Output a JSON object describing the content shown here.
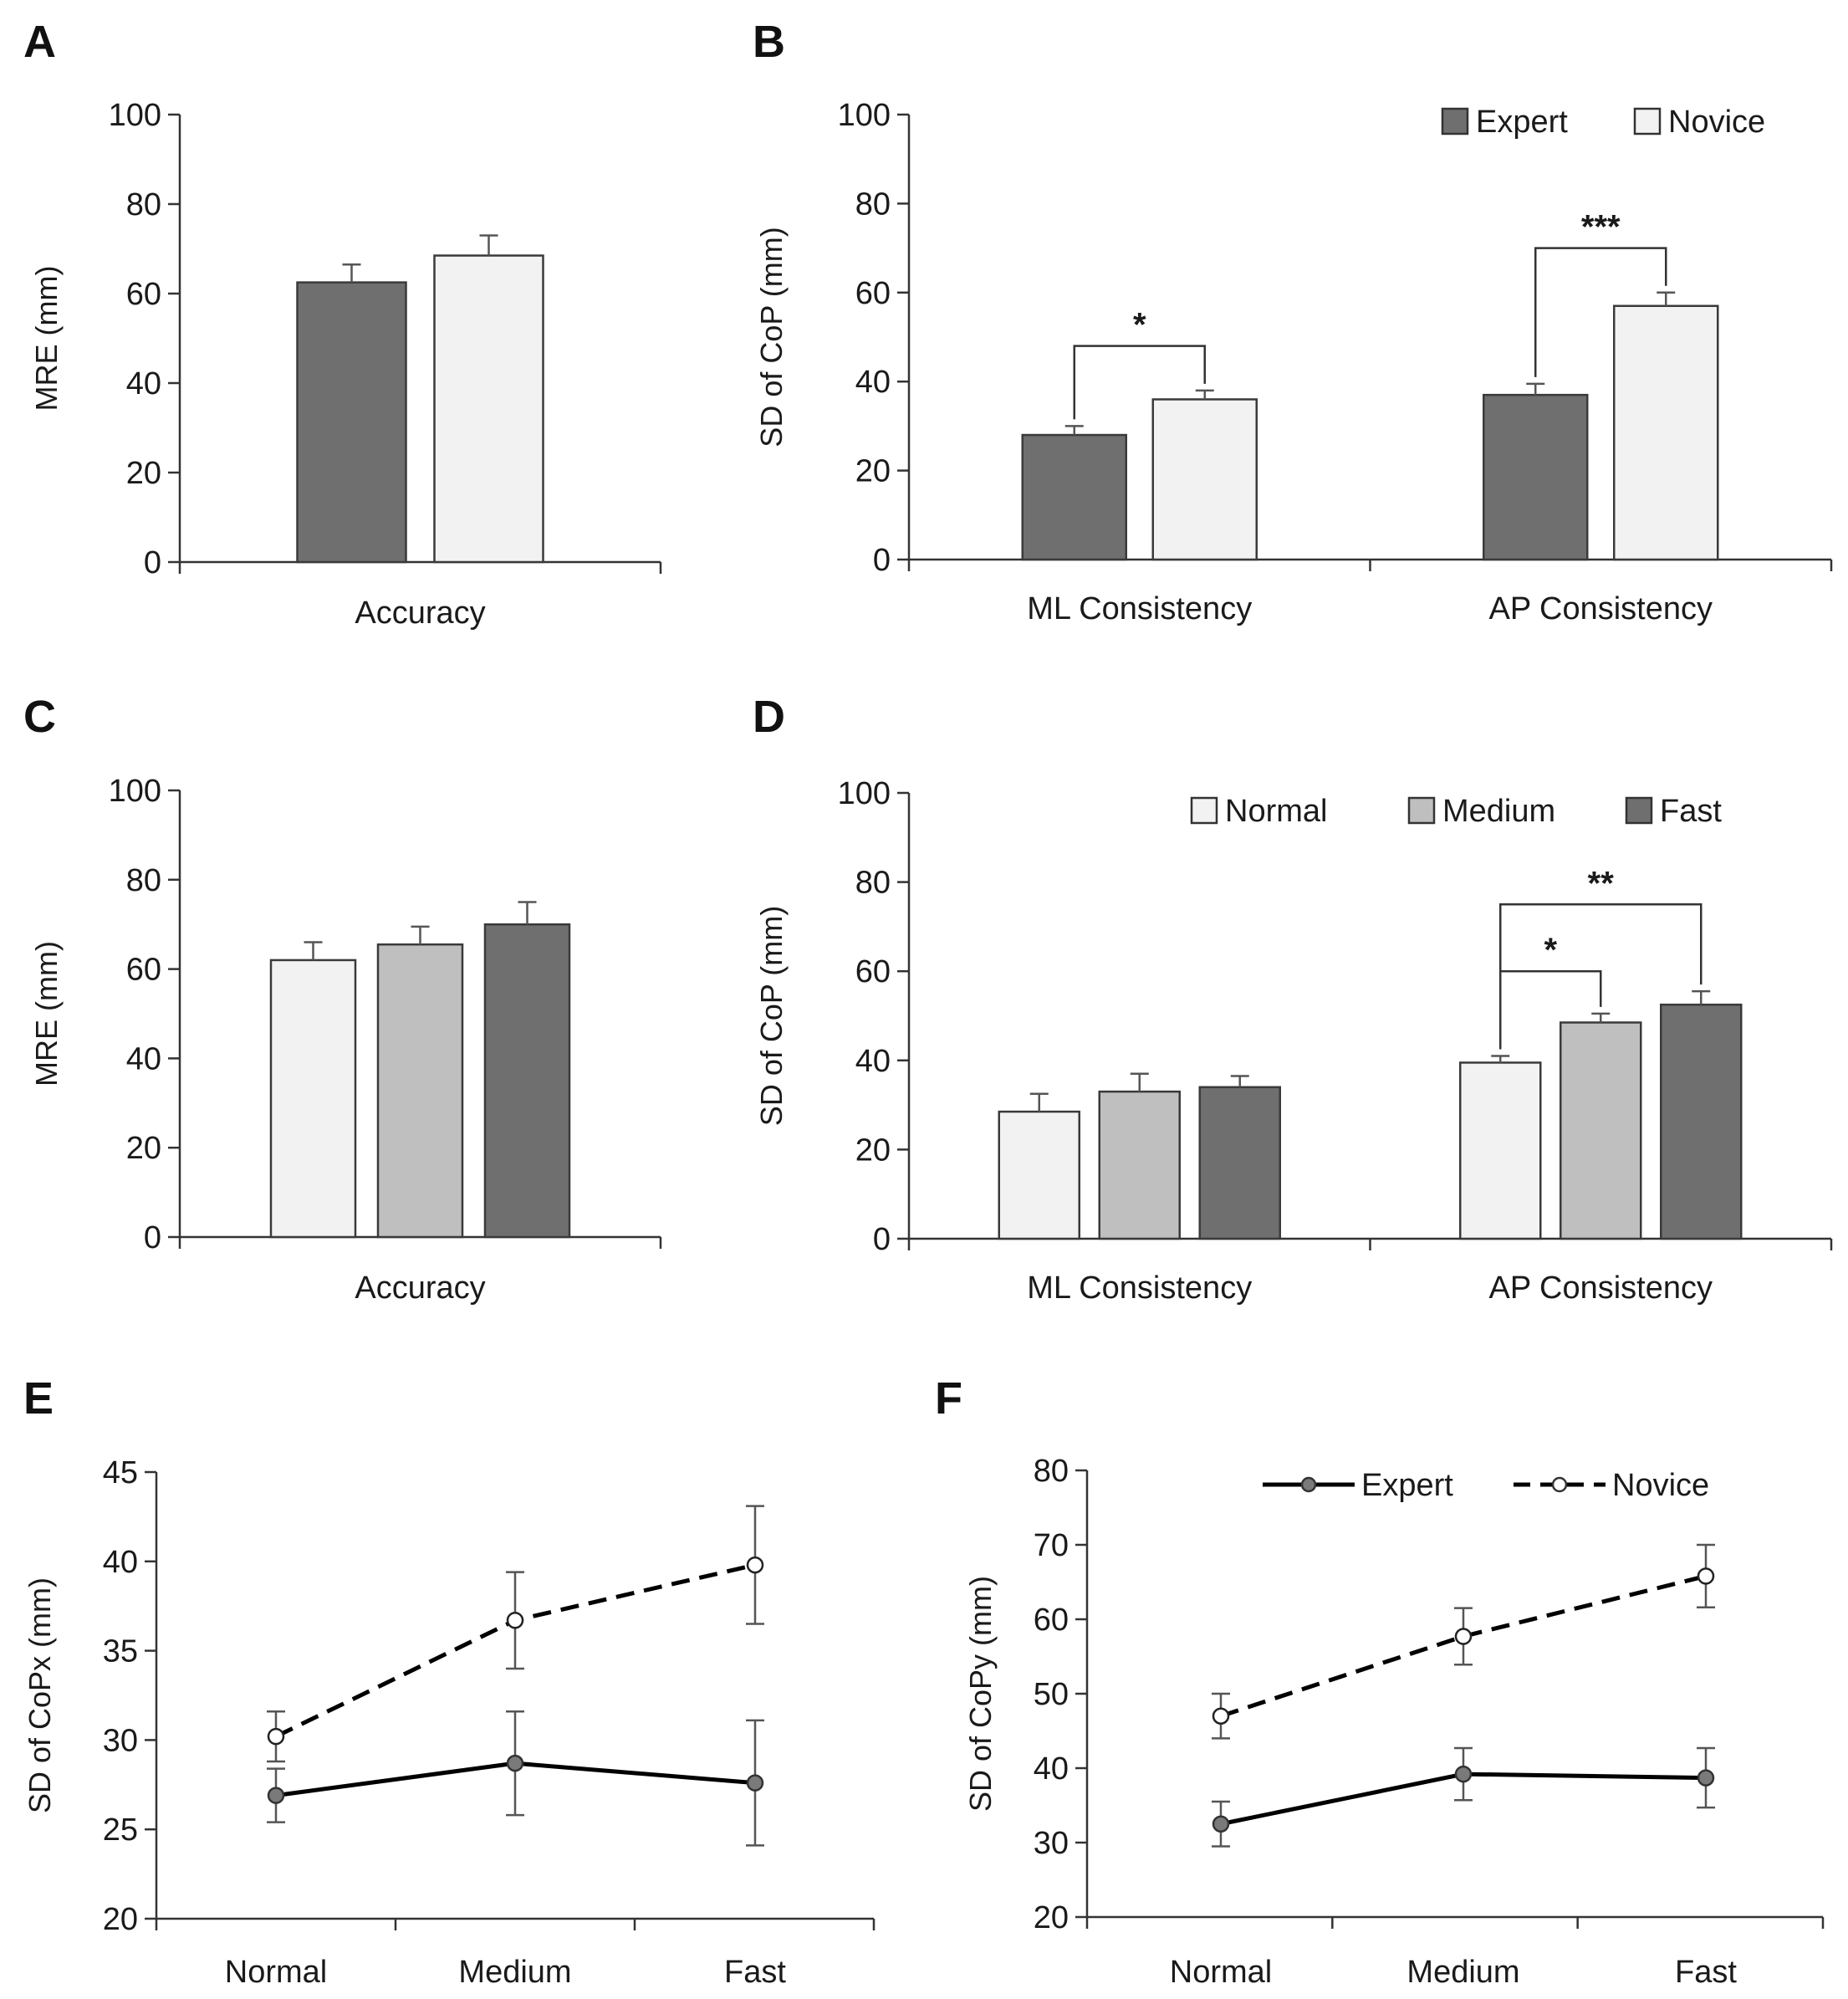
{
  "colors": {
    "expert": "#6f6f6f",
    "novice": "#f2f2f2",
    "normal": "#f2f2f2",
    "medium": "#bfbfbf",
    "fast": "#6f6f6f",
    "line_expert_marker": "#7a7a7a",
    "line_novice_marker": "#ffffff"
  },
  "chart_data": [
    {
      "id": "A",
      "letter": "A",
      "type": "bar",
      "title": "",
      "ylabel": "MRE (mm)",
      "xlabel": "",
      "ylim": [
        0,
        100
      ],
      "yticks": [
        0,
        20,
        40,
        60,
        80,
        100
      ],
      "categories": [
        "Accuracy"
      ],
      "series": [
        {
          "name": "Expert",
          "color_key": "expert",
          "values": [
            62.5
          ],
          "errors": [
            4
          ]
        },
        {
          "name": "Novice",
          "color_key": "novice",
          "values": [
            68.5
          ],
          "errors": [
            4.5
          ]
        }
      ],
      "legend": null,
      "brackets": []
    },
    {
      "id": "B",
      "letter": "B",
      "type": "bar",
      "title": "",
      "ylabel": "SD of CoP (mm)",
      "xlabel": "",
      "ylim": [
        0,
        100
      ],
      "yticks": [
        0,
        20,
        40,
        60,
        80,
        100
      ],
      "categories": [
        "ML Consistency",
        "AP Consistency"
      ],
      "series": [
        {
          "name": "Expert",
          "color_key": "expert",
          "values": [
            28,
            37
          ],
          "errors": [
            2,
            2.5
          ]
        },
        {
          "name": "Novice",
          "color_key": "novice",
          "values": [
            36,
            57
          ],
          "errors": [
            2,
            3
          ]
        }
      ],
      "legend": {
        "position": "top-right",
        "entries": [
          "Expert",
          "Novice"
        ]
      },
      "brackets": [
        {
          "category": 0,
          "from": 0,
          "to": 1,
          "y": 48,
          "label": "*"
        },
        {
          "category": 1,
          "from": 0,
          "to": 1,
          "y": 70,
          "label": "***"
        }
      ]
    },
    {
      "id": "C",
      "letter": "C",
      "type": "bar",
      "title": "",
      "ylabel": "MRE (mm)",
      "xlabel": "",
      "ylim": [
        0,
        100
      ],
      "yticks": [
        0,
        20,
        40,
        60,
        80,
        100
      ],
      "categories": [
        "Accuracy"
      ],
      "series": [
        {
          "name": "Normal",
          "color_key": "normal",
          "values": [
            62
          ],
          "errors": [
            4
          ]
        },
        {
          "name": "Medium",
          "color_key": "medium",
          "values": [
            65.5
          ],
          "errors": [
            4
          ]
        },
        {
          "name": "Fast",
          "color_key": "fast",
          "values": [
            70
          ],
          "errors": [
            5
          ]
        }
      ],
      "legend": null,
      "brackets": []
    },
    {
      "id": "D",
      "letter": "D",
      "type": "bar",
      "title": "",
      "ylabel": "SD of CoP (mm)",
      "xlabel": "",
      "ylim": [
        0,
        100
      ],
      "yticks": [
        0,
        20,
        40,
        60,
        80,
        100
      ],
      "categories": [
        "ML Consistency",
        "AP Consistency"
      ],
      "series": [
        {
          "name": "Normal",
          "color_key": "normal",
          "values": [
            28.5,
            39.5
          ],
          "errors": [
            4,
            1.5
          ]
        },
        {
          "name": "Medium",
          "color_key": "medium",
          "values": [
            33,
            48.5
          ],
          "errors": [
            4,
            2
          ]
        },
        {
          "name": "Fast",
          "color_key": "fast",
          "values": [
            34,
            52.5
          ],
          "errors": [
            2.5,
            3
          ]
        }
      ],
      "legend": {
        "position": "top-right",
        "entries": [
          "Normal",
          "Medium",
          "Fast"
        ]
      },
      "brackets": [
        {
          "category": 1,
          "from": 0,
          "to": 1,
          "y": 60,
          "label": "*"
        },
        {
          "category": 1,
          "from": 0,
          "to": 2,
          "y": 75,
          "label": "**"
        }
      ]
    },
    {
      "id": "E",
      "letter": "E",
      "type": "line",
      "title": "",
      "ylabel": "SD of CoPx (mm)",
      "xlabel": "",
      "ylim": [
        20,
        45
      ],
      "yticks": [
        20,
        25,
        30,
        35,
        40,
        45
      ],
      "categories": [
        "Normal",
        "Medium",
        "Fast"
      ],
      "series": [
        {
          "name": "Expert",
          "style": "solid",
          "marker": "filled",
          "values": [
            26.9,
            28.7,
            27.6
          ],
          "errors": [
            1.5,
            2.9,
            3.5
          ]
        },
        {
          "name": "Novice",
          "style": "dashed",
          "marker": "open",
          "values": [
            30.2,
            36.7,
            39.8
          ],
          "errors": [
            1.4,
            2.7,
            3.3
          ]
        }
      ],
      "legend": null
    },
    {
      "id": "F",
      "letter": "F",
      "type": "line",
      "title": "",
      "ylabel": "SD of CoPy (mm)",
      "xlabel": "",
      "ylim": [
        20,
        80
      ],
      "yticks": [
        20,
        30,
        40,
        50,
        60,
        70,
        80
      ],
      "categories": [
        "Normal",
        "Medium",
        "Fast"
      ],
      "series": [
        {
          "name": "Expert",
          "style": "solid",
          "marker": "filled",
          "values": [
            32.5,
            39.2,
            38.7
          ],
          "errors": [
            3,
            3.5,
            4
          ]
        },
        {
          "name": "Novice",
          "style": "dashed",
          "marker": "open",
          "values": [
            47,
            57.7,
            65.8
          ],
          "errors": [
            3,
            3.8,
            4.2
          ]
        }
      ],
      "legend": {
        "position": "top-right",
        "entries": [
          "Expert",
          "Novice"
        ]
      }
    }
  ]
}
